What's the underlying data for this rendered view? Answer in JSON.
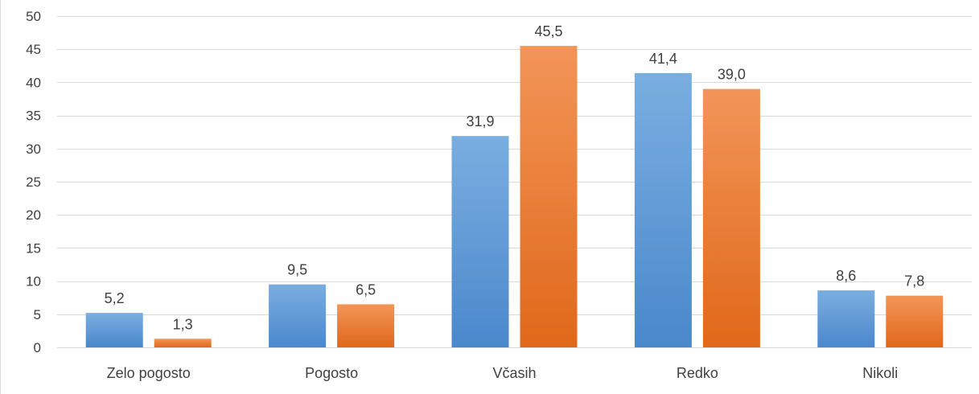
{
  "chart_data": {
    "type": "bar",
    "title": "",
    "xlabel": "",
    "ylabel": "",
    "categories": [
      "Zelo pogosto",
      "Pogosto",
      "Včasih",
      "Redko",
      "Nikoli"
    ],
    "series": [
      {
        "values": [
          5.2,
          9.5,
          31.9,
          41.4,
          8.6
        ],
        "value_labels": [
          "5,2",
          "9,5",
          "31,9",
          "41,4",
          "8,6"
        ],
        "color": "#5b9bd5"
      },
      {
        "values": [
          1.3,
          6.5,
          45.5,
          39.0,
          7.8
        ],
        "value_labels": [
          "1,3",
          "6,5",
          "45,5",
          "39,0",
          "7,8"
        ],
        "color": "#ed7d31"
      }
    ],
    "ylim": [
      0,
      50
    ],
    "yticks": [
      0,
      5,
      10,
      15,
      20,
      25,
      30,
      35,
      40,
      45,
      50
    ],
    "grid": true,
    "legend": "none",
    "colors": {
      "series1_light": "#7aaee0",
      "series1_dark": "#4a88cc",
      "series2_light": "#f29558",
      "series2_dark": "#e0681a",
      "grid": "#d9d9d9",
      "text": "#404040"
    }
  }
}
